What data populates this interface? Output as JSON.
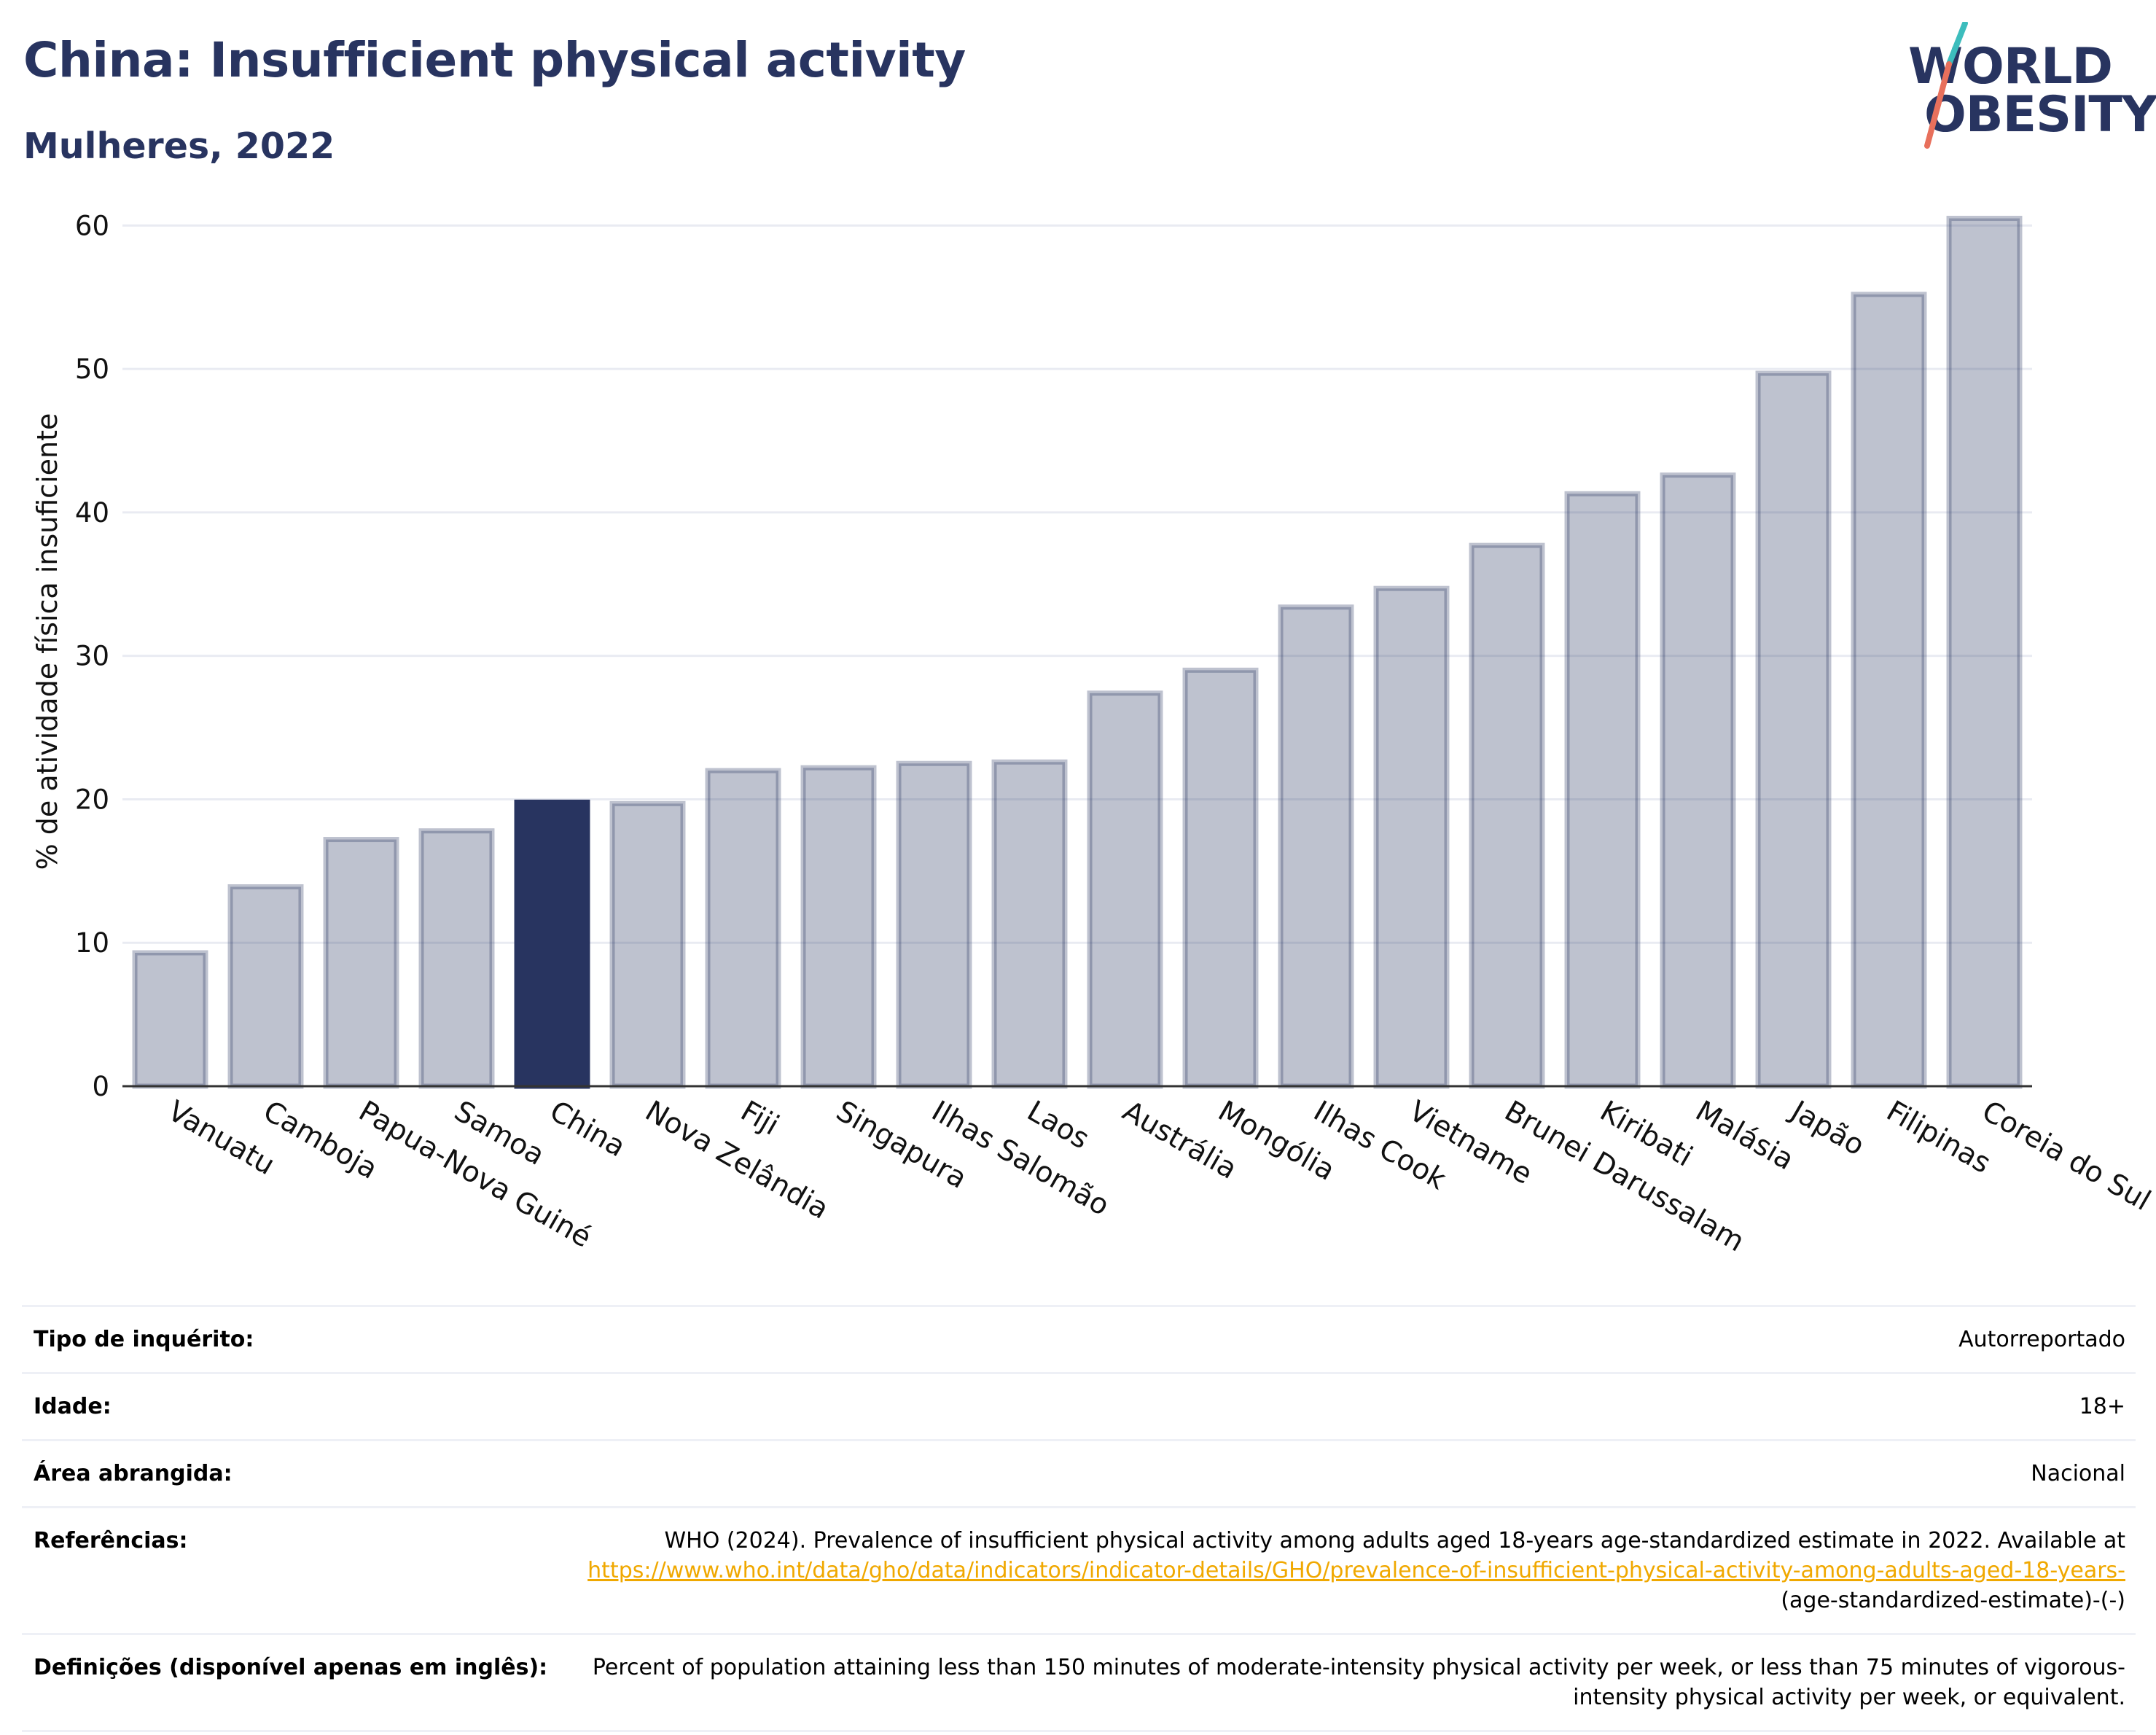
{
  "header": {
    "title": "China: Insufficient physical activity",
    "subtitle": "Mulheres, 2022"
  },
  "logo": {
    "line1": "WORLD",
    "line2": "OBESITY",
    "accent_colors": [
      "#3dbdbd",
      "#e8705c"
    ]
  },
  "colors": {
    "highlight_bar": "#283460",
    "other_bar": "rgba(40,52,96,0.3)",
    "title_text": "#283460",
    "link": "#f0a800"
  },
  "chart_data": {
    "type": "bar",
    "title": "",
    "xlabel": "",
    "ylabel": "% de atividade física insuficiente",
    "ylim": [
      0,
      62
    ],
    "yticks": [
      0,
      10,
      20,
      30,
      40,
      50,
      60
    ],
    "grid": true,
    "highlight": "China",
    "categories": [
      "Vanuatu",
      "Camboja",
      "Papua-Nova Guiné",
      "Samoa",
      "China",
      "Nova Zelândia",
      "Fiji",
      "Singapura",
      "Ilhas Salomão",
      "Laos",
      "Austrália",
      "Mongólia",
      "Ilhas Cook",
      "Vietname",
      "Brunei Darussalam",
      "Kiribati",
      "Malásia",
      "Japão",
      "Filipinas",
      "Coreia do Sul"
    ],
    "values": [
      9.3,
      13.9,
      17.2,
      17.8,
      19.8,
      19.7,
      22.0,
      22.2,
      22.5,
      22.6,
      27.4,
      29.0,
      33.4,
      34.7,
      37.7,
      41.3,
      42.6,
      49.7,
      55.2,
      60.5
    ]
  },
  "info": [
    {
      "label": "Tipo de inquérito:",
      "value": "Autorreportado"
    },
    {
      "label": "Idade:",
      "value": "18+"
    },
    {
      "label": "Área abrangida:",
      "value": "Nacional"
    },
    {
      "label": "Referências:",
      "value": "WHO (2024). Prevalence of insufficient physical activity among adults aged 18-years age-standardized estimate in 2022. Available at ",
      "link": "https://www.who.int/data/gho/data/indicators/indicator-details/GHO/prevalence-of-insufficient-physical-activity-among-adults-aged-18-years-",
      "value_after": "(age-standardized-estimate)-(-)"
    },
    {
      "label": "Definições (disponível apenas em inglês):",
      "value": "Percent of population attaining less than 150 minutes of moderate-intensity physical activity per week, or less than 75 minutes of vigorous-intensity physical activity per week, or equivalent."
    }
  ]
}
